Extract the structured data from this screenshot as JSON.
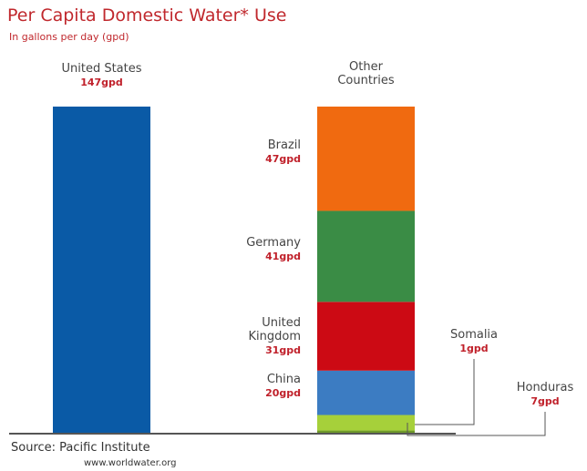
{
  "chart_data": {
    "type": "stacked_bar",
    "title": "Per Capita Domestic Water* Use",
    "subtitle": "In gallons per day (gpd)",
    "source": "Source: Pacific Institute",
    "url": "www.worldwater.org",
    "categories": [
      "United States",
      "Other Countries"
    ],
    "series": [
      {
        "color": "#0a5aa6",
        "values": [
          147,
          null
        ],
        "value_labels": [
          "147gpd",
          null
        ]
      },
      {
        "name": "Brazil",
        "color": "#f06a10",
        "values": [
          null,
          47
        ],
        "value_labels": [
          null,
          "47gpd"
        ]
      },
      {
        "name": "Germany",
        "color": "#3a8c45",
        "values": [
          null,
          41
        ],
        "value_labels": [
          null,
          "41gpd"
        ]
      },
      {
        "name": "United Kingdom",
        "color": "#cc0a14",
        "values": [
          null,
          31
        ],
        "value_labels": [
          null,
          "31gpd"
        ]
      },
      {
        "name": "China",
        "color": "#3c7cc2",
        "values": [
          null,
          20
        ],
        "value_labels": [
          null,
          "20gpd"
        ]
      },
      {
        "name": "Honduras",
        "color": "#a6d03a",
        "values": [
          null,
          7
        ],
        "value_labels": [
          null,
          "7gpd"
        ]
      },
      {
        "name": "Somalia",
        "color": "#6f9a2a",
        "values": [
          null,
          1
        ],
        "value_labels": [
          null,
          "1gpd"
        ]
      }
    ]
  }
}
